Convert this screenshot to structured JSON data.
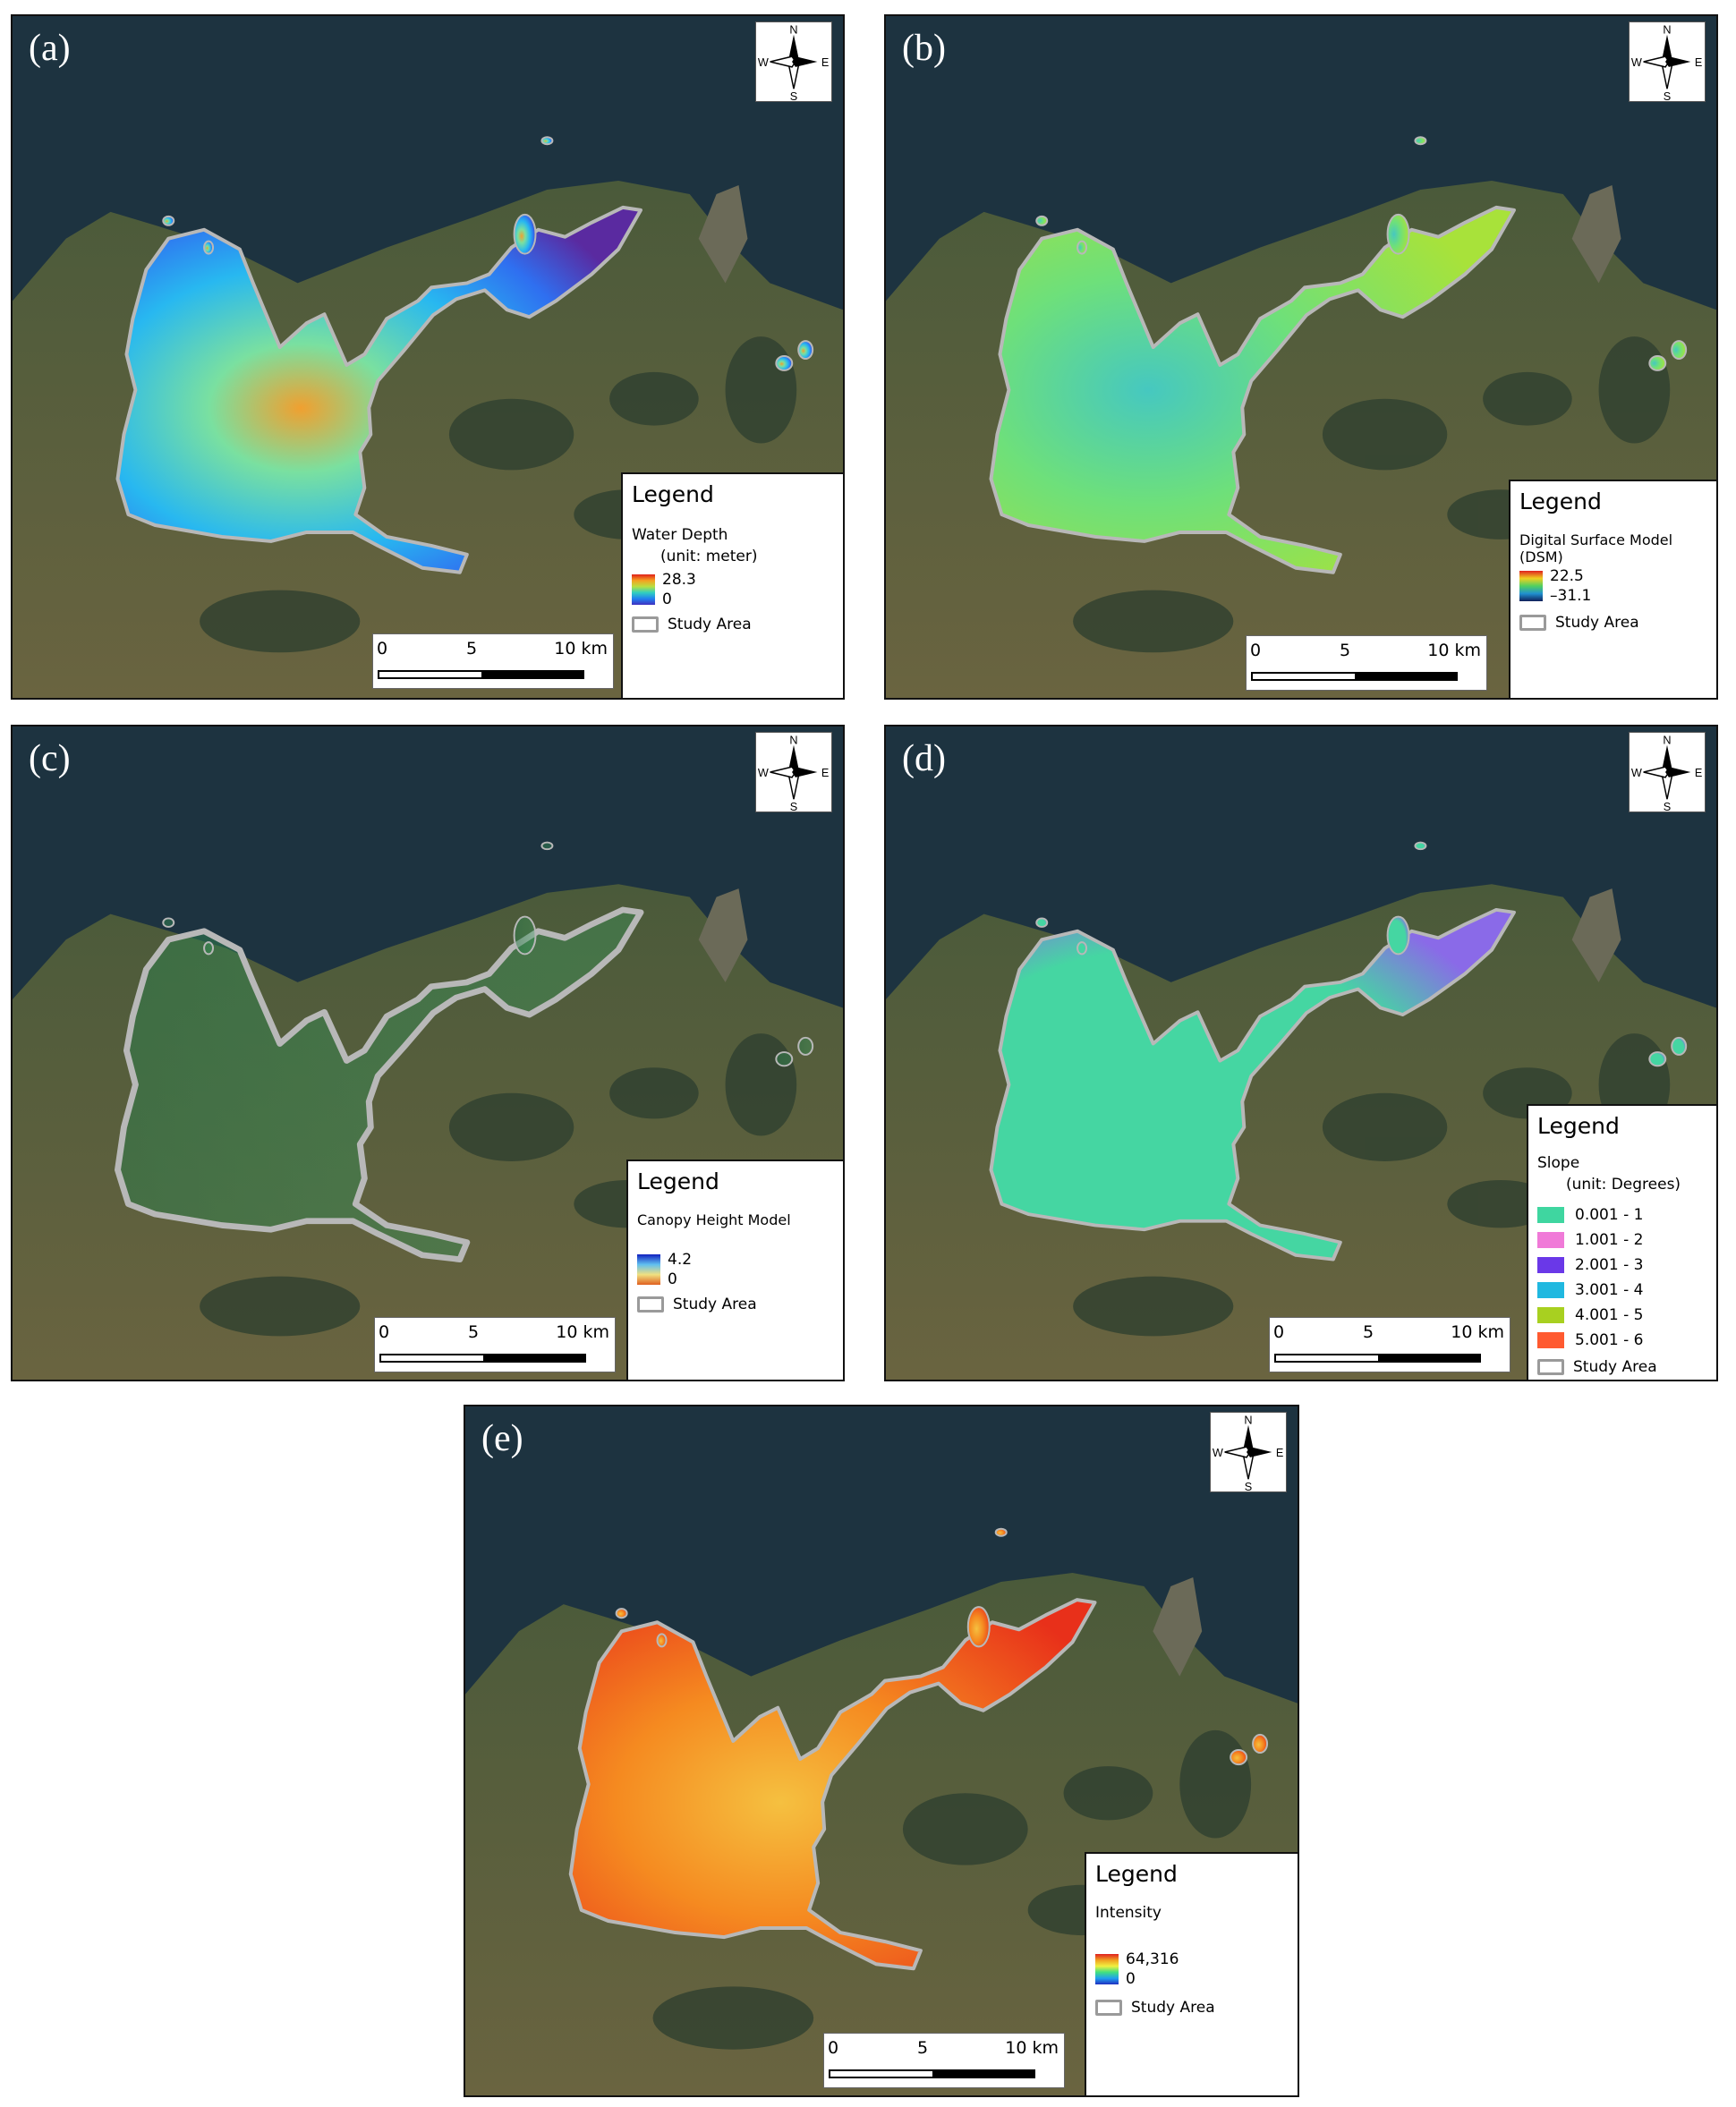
{
  "panels": {
    "a": {
      "label": "(a)",
      "legend": {
        "title": "Legend",
        "variable": "Water Depth",
        "unit": "(unit: meter)",
        "max": "28.3",
        "min": "0",
        "study_area": "Study Area"
      },
      "ramp_colors": [
        "#e0201a",
        "#f5a020",
        "#b8e040",
        "#30d0c0",
        "#2080f0",
        "#4030c0"
      ],
      "fill_colors": [
        "#5a2aa0",
        "#2f6ff0",
        "#28b8f0",
        "#7ae0a0",
        "#f0a030"
      ]
    },
    "b": {
      "label": "(b)",
      "legend": {
        "title": "Legend",
        "variable": "Digital Surface Model (DSM)",
        "max": "22.5",
        "min": "–31.1",
        "study_area": "Study Area"
      },
      "ramp_colors": [
        "#e02020",
        "#f0d020",
        "#50d060",
        "#2090d0",
        "#10205a"
      ],
      "fill_colors": [
        "#6ee07a",
        "#a8e23a",
        "#46c8c0",
        "#0c3a6a"
      ]
    },
    "c": {
      "label": "(c)",
      "legend": {
        "title": "Legend",
        "variable": "Canopy Height Model",
        "max": "4.2",
        "min": "0",
        "study_area": "Study Area"
      },
      "ramp_colors": [
        "#1020c0",
        "#60c0f0",
        "#f0e080",
        "#e06020"
      ],
      "fill_colors": [
        "#2f7a4a",
        "#3aa060"
      ]
    },
    "d": {
      "label": "(d)",
      "legend": {
        "title": "Legend",
        "variable": "Slope",
        "unit": "(unit: Degrees)",
        "classes": [
          {
            "label": "0.001 - 1",
            "color": "#3fd6a0"
          },
          {
            "label": "1.001 - 2",
            "color": "#f07ad8"
          },
          {
            "label": "2.001 - 3",
            "color": "#6a38e8"
          },
          {
            "label": "3.001 - 4",
            "color": "#20b8e0"
          },
          {
            "label": "4.001 - 5",
            "color": "#a8d020"
          },
          {
            "label": "5.001 - 6",
            "color": "#ff5a30"
          }
        ],
        "study_area": "Study Area"
      },
      "fill_colors": [
        "#45d6a2",
        "#8a6ae8"
      ]
    },
    "e": {
      "label": "(e)",
      "legend": {
        "title": "Legend",
        "variable": "Intensity",
        "max": "64,316",
        "min": "0",
        "study_area": "Study Area"
      },
      "ramp_colors": [
        "#e02020",
        "#f0a020",
        "#f0f040",
        "#40e080",
        "#20a0f0",
        "#2030c0"
      ],
      "fill_colors": [
        "#e8301a",
        "#f58a20",
        "#f5c040"
      ]
    }
  },
  "north_arrow": {
    "n": "N",
    "s": "S",
    "e": "E",
    "w": "W"
  },
  "scale_bar": {
    "t0": "0",
    "t1": "5",
    "t2": "10 km"
  },
  "map_colors": {
    "water": "#1d3340",
    "land": "#4a5a3a",
    "land_dark": "#2f4030",
    "study_outline": "#b8b8b8"
  }
}
